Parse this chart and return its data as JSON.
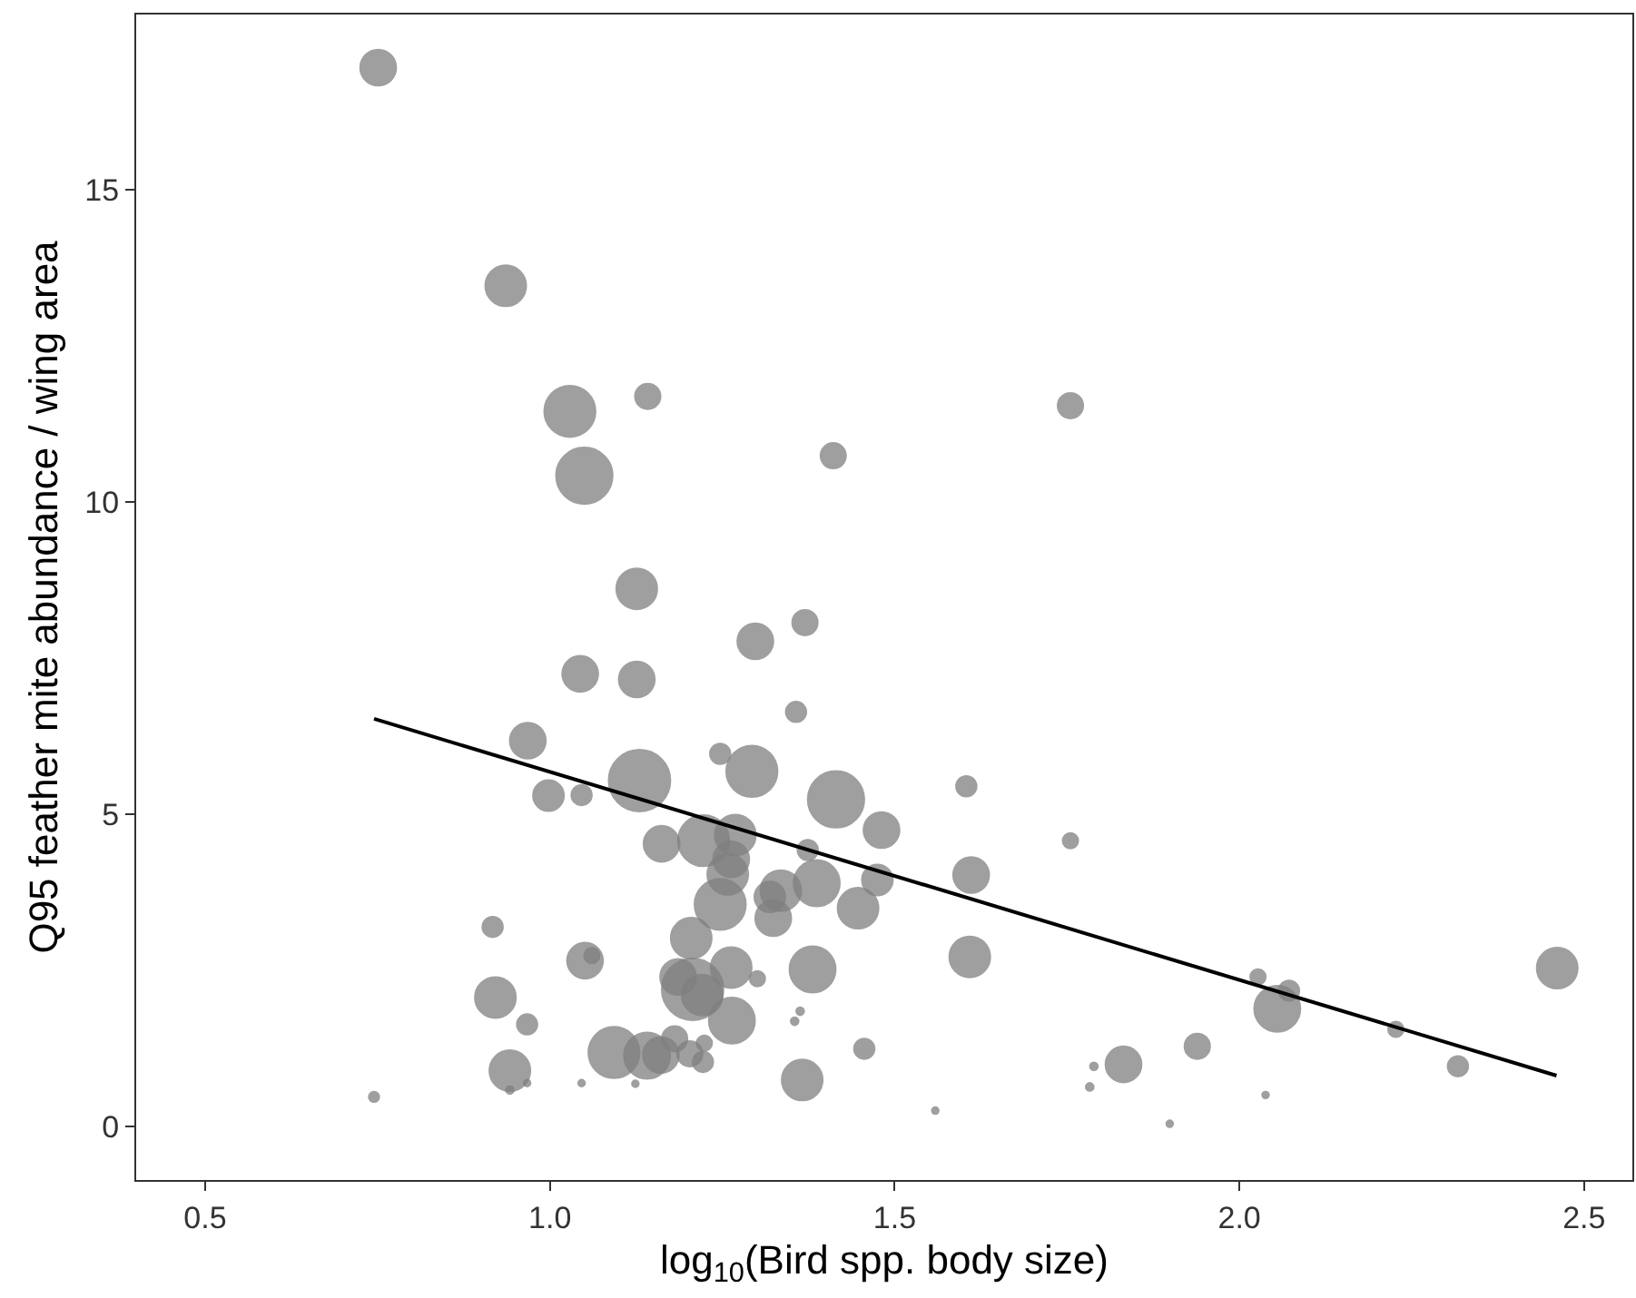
{
  "chart_data": {
    "type": "bubble",
    "xlabel": "log$_{10}$(Bird spp. body size)",
    "ylabel": "Q95 feather mite abundance / wing area",
    "xlim": [
      0.4,
      2.57
    ],
    "ylim": [
      -0.85,
      17.8
    ],
    "xticks": [
      {
        "value": 0.5,
        "label": "0.5"
      },
      {
        "value": 1,
        "label": "1.0"
      },
      {
        "value": 1.5,
        "label": "1.5"
      },
      {
        "value": 2,
        "label": "2.0"
      },
      {
        "value": 2.5,
        "label": "2.5"
      }
    ],
    "yticks": [
      0,
      5,
      10,
      15
    ],
    "relative": false,
    "series": [
      {
        "marker": "circle",
        "color": "#7f7f7f",
        "x": [
          0.751,
          0.936,
          1.029,
          1.142,
          1.05,
          1.411,
          1.755,
          1.126,
          1.37,
          1.298,
          1.126,
          1.044,
          1.357,
          0.968,
          1.247,
          1.293,
          1.13,
          1.415,
          1.604,
          0.998,
          1.046,
          1.481,
          1.162,
          1.223,
          1.269,
          1.374,
          1.755,
          1.263,
          1.258,
          1.475,
          1.611,
          1.387,
          1.335,
          1.319,
          1.247,
          1.447,
          1.324,
          0.917,
          1.205,
          1.609,
          1.051,
          1.061,
          1.263,
          1.381,
          1.301,
          1.186,
          1.207,
          1.221,
          0.921,
          1.264,
          1.363,
          1.355,
          0.967,
          1.181,
          1.224,
          1.093,
          1.141,
          1.161,
          1.203,
          1.222,
          1.456,
          0.942,
          1.366,
          1.124,
          0.942,
          0.967,
          1.046,
          0.745,
          1.559,
          2.027,
          2.072,
          2.055,
          2.461,
          2.227,
          2.317,
          1.939,
          1.832,
          1.789,
          1.783,
          2.038,
          1.899
        ],
        "values": [
          16.95,
          13.46,
          11.45,
          11.69,
          10.42,
          10.74,
          11.54,
          8.61,
          8.07,
          7.77,
          7.16,
          7.25,
          6.64,
          6.18,
          5.97,
          5.69,
          5.54,
          5.24,
          5.45,
          5.3,
          5.31,
          4.75,
          4.53,
          4.58,
          4.67,
          4.43,
          4.58,
          4.28,
          4.04,
          3.95,
          4.03,
          3.9,
          3.78,
          3.68,
          3.56,
          3.5,
          3.34,
          3.2,
          3.02,
          2.72,
          2.66,
          2.74,
          2.55,
          2.52,
          2.37,
          2.4,
          2.2,
          2.11,
          2.07,
          1.7,
          1.85,
          1.69,
          1.64,
          1.41,
          1.34,
          1.19,
          1.14,
          1.15,
          1.17,
          1.04,
          1.25,
          0.9,
          0.75,
          0.69,
          0.59,
          0.7,
          0.7,
          0.48,
          0.26,
          2.4,
          2.18,
          1.89,
          2.54,
          1.56,
          0.97,
          1.29,
          1.0,
          0.97,
          0.64,
          0.51,
          0.05
        ],
        "sizes": [
          0.34,
          0.44,
          0.69,
          0.17,
          0.84,
          0.17,
          0.17,
          0.44,
          0.17,
          0.34,
          0.34,
          0.34,
          0.11,
          0.34,
          0.11,
          0.69,
          1,
          0.84,
          0.11,
          0.25,
          0.11,
          0.34,
          0.34,
          0.69,
          0.44,
          0.11,
          0.063,
          0.34,
          0.44,
          0.25,
          0.34,
          0.56,
          0.44,
          0.25,
          0.69,
          0.44,
          0.34,
          0.11,
          0.44,
          0.44,
          0.34,
          0.063,
          0.44,
          0.56,
          0.063,
          0.34,
          1,
          0.44,
          0.44,
          0.56,
          0.016,
          0.016,
          0.11,
          0.17,
          0.063,
          0.69,
          0.56,
          0.34,
          0.17,
          0.11,
          0.11,
          0.44,
          0.44,
          0.012,
          0.016,
          0.012,
          0.012,
          0.028,
          0.012,
          0.063,
          0.11,
          0.56,
          0.44,
          0.063,
          0.11,
          0.17,
          0.34,
          0.016,
          0.016,
          0.012,
          0.012
        ]
      },
      {
        "type": "line",
        "color": "#000000",
        "x": [
          0.745,
          2.46
        ],
        "values": [
          6.53,
          0.82
        ]
      }
    ]
  }
}
